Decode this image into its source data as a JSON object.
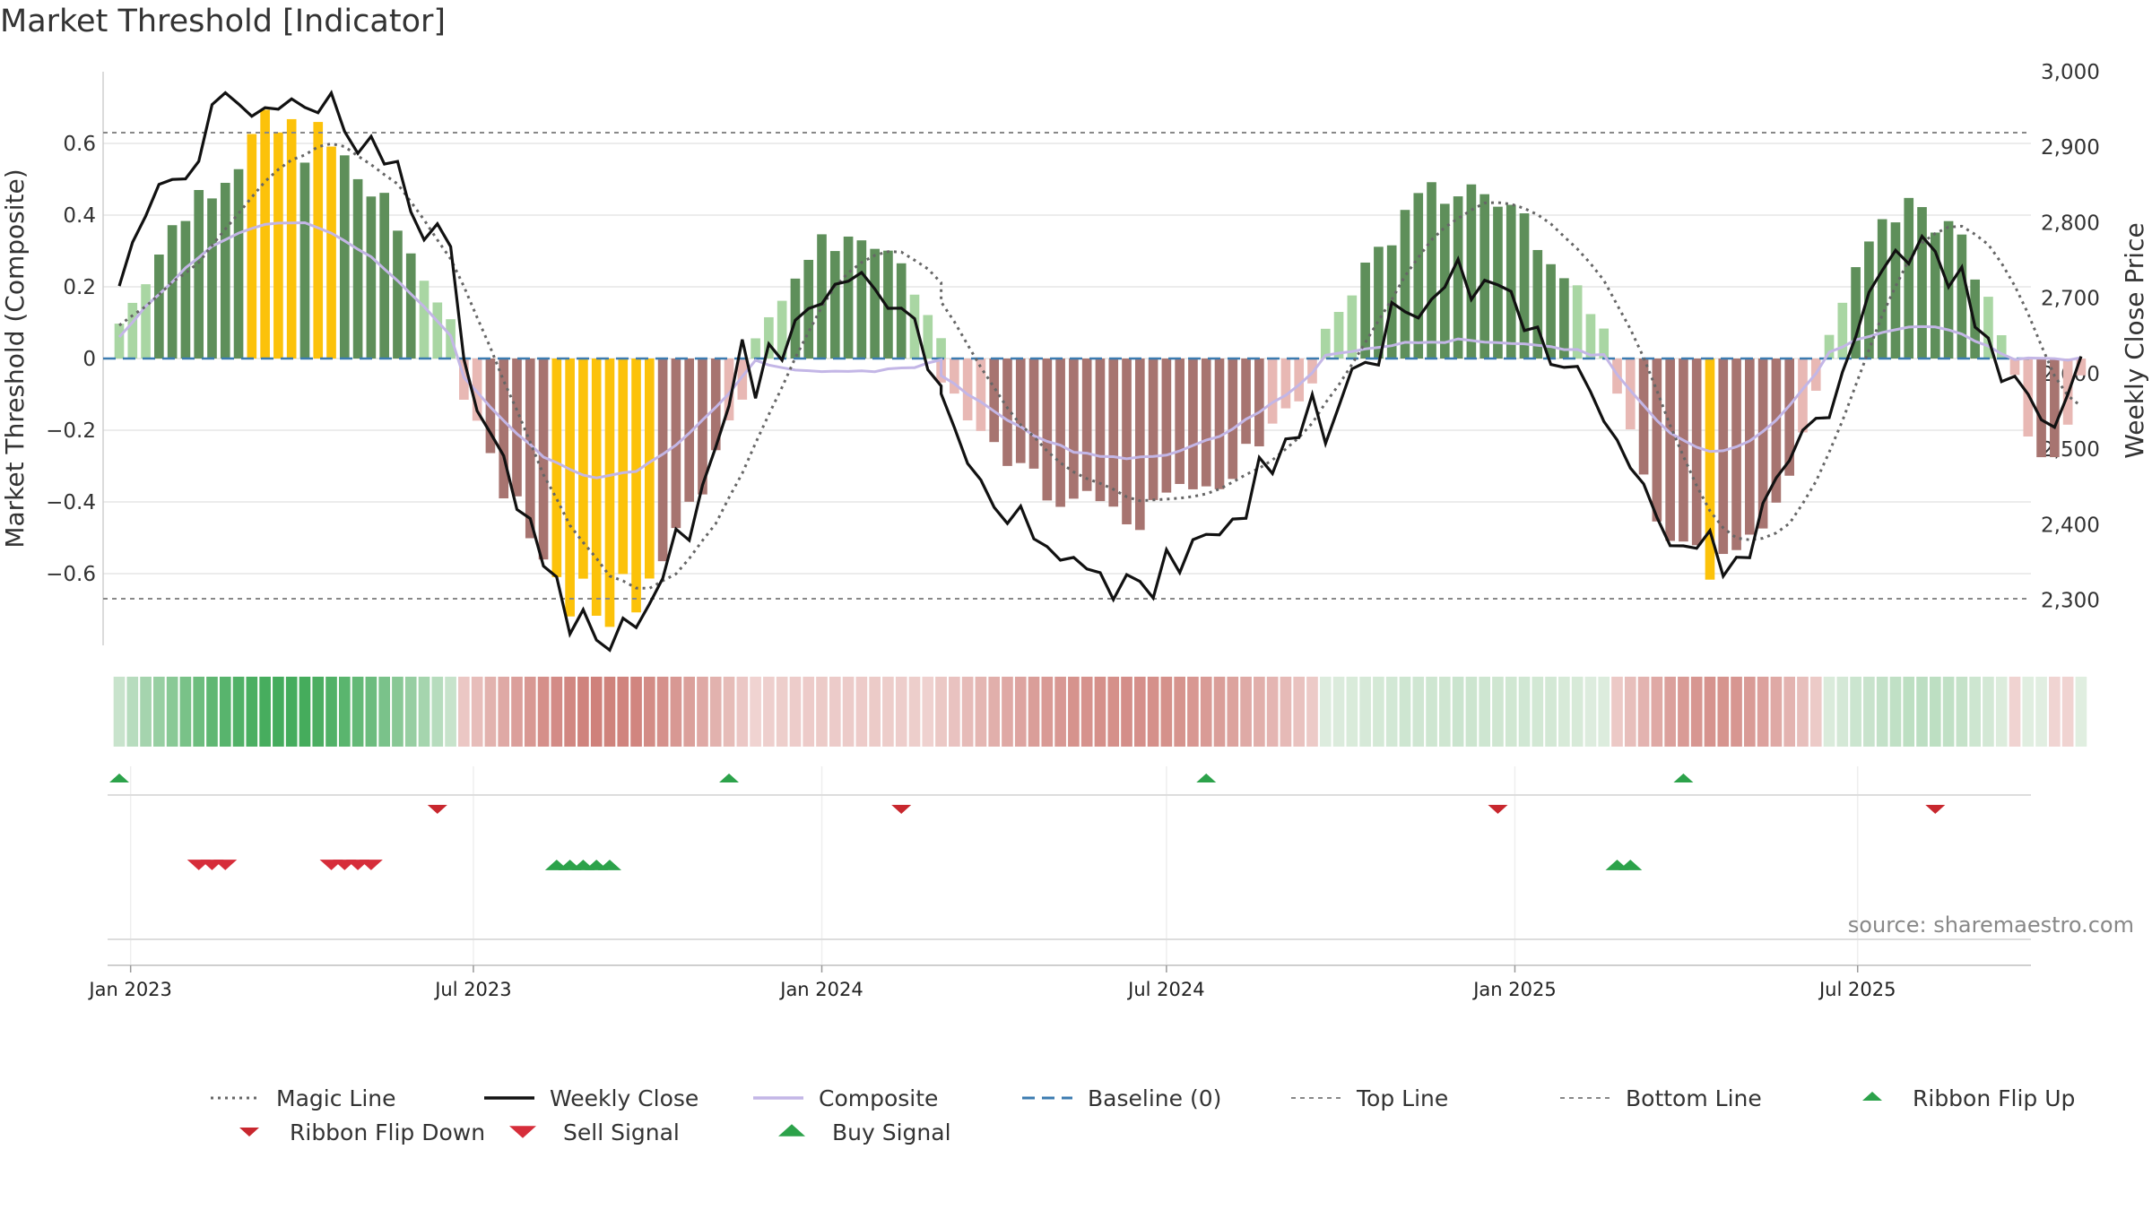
{
  "page_title": "Market Threshold [Indicator]",
  "chart_data": {
    "type": "bar",
    "title": "Market Threshold [Indicator]",
    "ylabel": "Market Threshold (Composite)",
    "ylabel_right": "Weekly Close Price",
    "ylim": [
      -0.8,
      0.8
    ],
    "ylim_right": [
      2240,
      3000
    ],
    "yticks": [
      -0.6,
      -0.4,
      -0.2,
      0,
      0.2,
      0.4,
      0.6
    ],
    "ytick_labels": [
      "−0.6",
      "−0.4",
      "−0.2",
      "0",
      "0.2",
      "0.4",
      "0.6"
    ],
    "yticks_right": [
      2300,
      2400,
      2500,
      2600,
      2700,
      2800,
      2900,
      3000
    ],
    "ytick_labels_right": [
      "2,300",
      "2,400",
      "2,500",
      "2,600",
      "2,700",
      "2,800",
      "2,900",
      "3,000"
    ],
    "x_range": [
      "2022-12-26",
      "2025-09-22"
    ],
    "xticks": [
      {
        "date": "2023-01-01",
        "label": "Jan 2023"
      },
      {
        "date": "2023-07-01",
        "label": "Jul 2023"
      },
      {
        "date": "2024-01-01",
        "label": "Jan 2024"
      },
      {
        "date": "2024-07-01",
        "label": "Jul 2024"
      },
      {
        "date": "2025-01-01",
        "label": "Jan 2025"
      },
      {
        "date": "2025-07-01",
        "label": "Jul 2025"
      }
    ],
    "top_line": 0.63,
    "bottom_line": -0.67,
    "baseline": 0,
    "source": "source: sharemaestro.com",
    "colors": {
      "strong_up": "#5e8f5a",
      "weak_up": "#a9d6a3",
      "strong_down": "#a77470",
      "weak_down": "#e8b8b4",
      "extreme": "#fcc20a",
      "close": "#111111",
      "composite": "#c3b6e6",
      "magic": "#666666",
      "baseline": "#3b7bb0",
      "threshold": "#888888",
      "buy": "#2ca24a",
      "sell": "#d62d3a",
      "flip_down": "#c8272e"
    },
    "segments": [
      {
        "start": "2022-12-26",
        "len": 26,
        "peak": 0.66,
        "composite_peak": 0.38,
        "close_start": 2700,
        "close_peak": 2975,
        "up": true
      },
      {
        "start": "2023-06-26",
        "len": 22,
        "peak": -0.73,
        "composite_peak": -0.33,
        "close_start": 2680,
        "close_peak": 2265,
        "up": false
      },
      {
        "start": "2023-11-27",
        "len": 15,
        "peak": 0.36,
        "composite_peak": -0.04,
        "close_start": 2560,
        "close_peak": 2710,
        "up": true
      },
      {
        "start": "2024-03-04",
        "len": 29,
        "peak": -0.46,
        "composite_peak": -0.28,
        "close_start": 2600,
        "close_peak": 2330,
        "up": false
      },
      {
        "start": "2024-09-23",
        "len": 22,
        "peak": 0.5,
        "composite_peak": 0.05,
        "close_start": 2480,
        "close_peak": 2730,
        "up": true
      },
      {
        "start": "2025-02-24",
        "len": 16,
        "peak": -0.65,
        "composite_peak": -0.26,
        "close_start": 2580,
        "close_peak": 2360,
        "up": false
      },
      {
        "start": "2025-06-16",
        "len": 14,
        "peak": 0.45,
        "composite_peak": 0.09,
        "close_start": 2530,
        "close_peak": 2780,
        "up": true
      },
      {
        "start": "2025-09-22",
        "len": 6,
        "peak": -0.34,
        "composite_peak": 0.0,
        "close_start": 2600,
        "close_peak": 2545,
        "up": false
      }
    ],
    "ribbon": {
      "note": "weekly ribbon colored by composite sign and strength"
    },
    "ribbon_flip_up": [
      "2022-12-26",
      "2023-11-13",
      "2024-07-22",
      "2025-03-31"
    ],
    "ribbon_flip_down": [
      "2023-06-12",
      "2024-02-12",
      "2024-12-23",
      "2025-08-11"
    ],
    "sell_signals": [
      "2023-02-06",
      "2023-02-13",
      "2023-02-20",
      "2023-04-17",
      "2023-04-24",
      "2023-05-01",
      "2023-05-08"
    ],
    "buy_signals": [
      "2023-08-14",
      "2023-08-21",
      "2023-08-28",
      "2023-09-04",
      "2023-09-11",
      "2025-02-24",
      "2025-03-03"
    ],
    "legend": [
      {
        "label": "Magic Line",
        "type": "dotted",
        "key": "magic"
      },
      {
        "label": "Weekly Close",
        "type": "solid",
        "key": "close"
      },
      {
        "label": "Composite",
        "type": "solid",
        "key": "composite"
      },
      {
        "label": "Baseline (0)",
        "type": "dashed",
        "key": "baseline"
      },
      {
        "label": "Top Line",
        "type": "dashed-thin",
        "key": "threshold"
      },
      {
        "label": "Bottom Line",
        "type": "dashed-thin",
        "key": "threshold"
      },
      {
        "label": "Ribbon Flip Up",
        "type": "tri-up",
        "key": "buy"
      },
      {
        "label": "Ribbon Flip Down",
        "type": "tri-down",
        "key": "flip_down"
      },
      {
        "label": "Sell Signal",
        "type": "tri-down-big",
        "key": "sell"
      },
      {
        "label": "Buy Signal",
        "type": "tri-up-big",
        "key": "buy"
      }
    ]
  }
}
